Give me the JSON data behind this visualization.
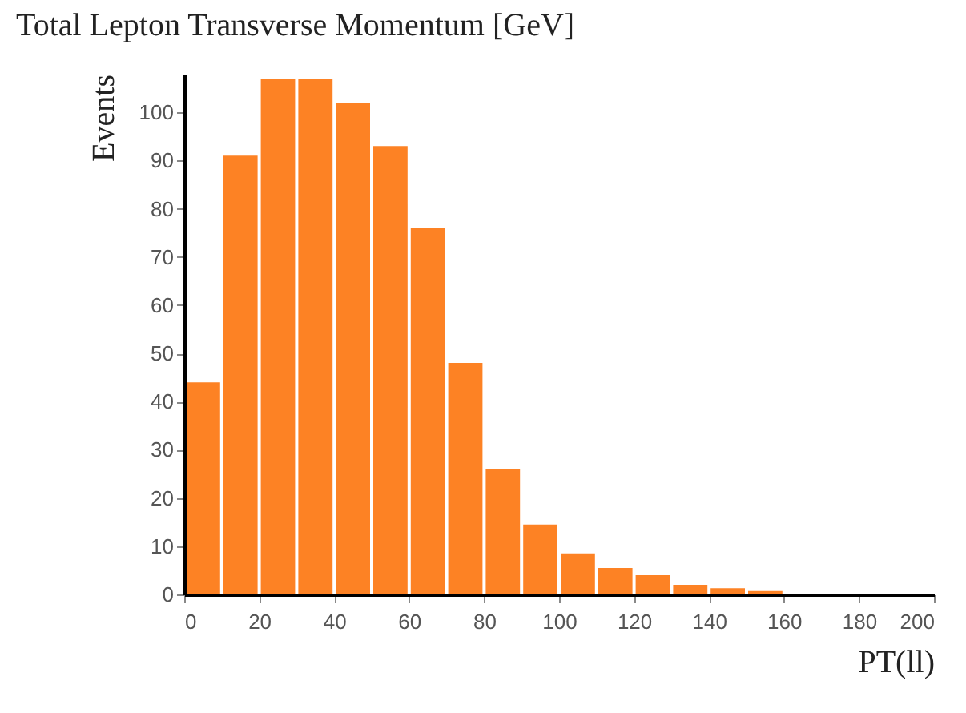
{
  "chart_data": {
    "type": "histogram",
    "title": "Total Lepton Transverse Momentum [GeV]",
    "xlabel": "PT(ll)",
    "ylabel": "Events",
    "color": "#fd8224",
    "bins": [
      0,
      10,
      20,
      30,
      40,
      50,
      60,
      70,
      80,
      90,
      100,
      110,
      120,
      130,
      140,
      150,
      160,
      170,
      180,
      190,
      200
    ],
    "values": [
      44,
      91,
      107,
      107,
      102,
      93,
      76,
      48,
      26,
      14.5,
      8.5,
      5.5,
      4,
      2,
      1.3,
      0.7,
      0,
      0,
      0,
      0
    ],
    "xlim": [
      0,
      200
    ],
    "xticks": [
      0,
      20,
      40,
      60,
      80,
      100,
      120,
      140,
      160,
      180,
      200
    ],
    "ylim": [
      0,
      108
    ],
    "yticks": [
      0,
      10,
      20,
      30,
      40,
      50,
      60,
      70,
      80,
      90,
      100
    ],
    "grid": false
  }
}
